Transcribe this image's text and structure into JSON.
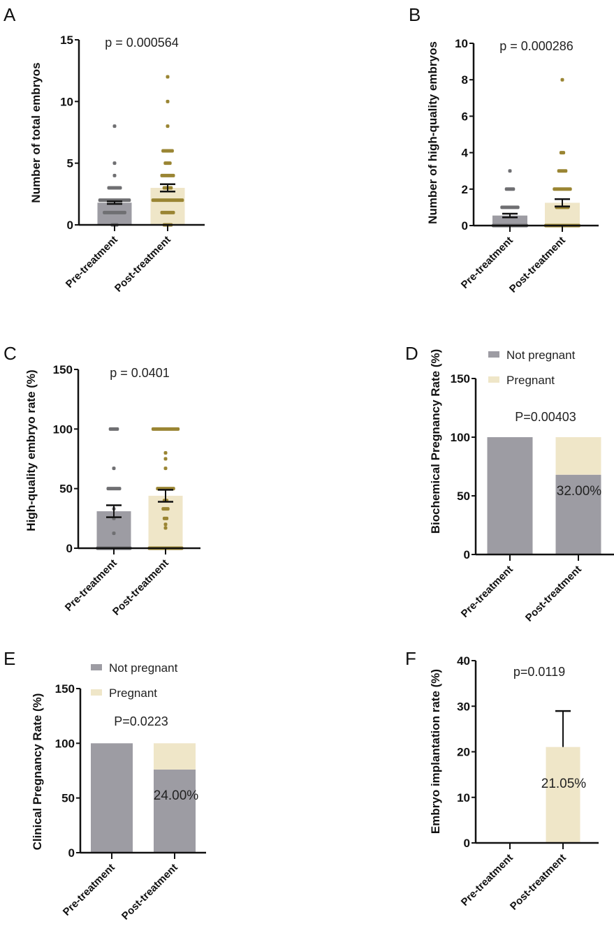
{
  "colors": {
    "pre_bar": "#9d9ca3",
    "post_bar": "#efe6c8",
    "pre_dots": "#6f6f72",
    "post_dots": "#9a8533",
    "not_pregnant": "#9d9ca3",
    "pregnant": "#efe6c8",
    "axis": "#111111"
  },
  "chart_data": [
    {
      "panel": "A",
      "type": "bar",
      "ylabel": "Number of total embryos",
      "ylim": [
        0,
        15
      ],
      "yticks": [
        0,
        5,
        10,
        15
      ],
      "p_text": "p = 0.000564",
      "categories": [
        "Pre-treatment",
        "Post-treatment"
      ],
      "series": [
        {
          "name": "Pre-treatment",
          "mean": 1.8,
          "sem": 0.1,
          "points": [
            {
              "v": 0,
              "n": 3
            },
            {
              "v": 1,
              "n": 10
            },
            {
              "v": 2,
              "n": 14
            },
            {
              "v": 3,
              "n": 6
            },
            {
              "v": 4,
              "n": 1
            },
            {
              "v": 5,
              "n": 1
            },
            {
              "v": 8,
              "n": 1
            }
          ]
        },
        {
          "name": "Post-treatment",
          "mean": 3.0,
          "sem": 0.3,
          "points": [
            {
              "v": 0,
              "n": 4
            },
            {
              "v": 1,
              "n": 6
            },
            {
              "v": 2,
              "n": 14
            },
            {
              "v": 3,
              "n": 4
            },
            {
              "v": 4,
              "n": 6
            },
            {
              "v": 5,
              "n": 3
            },
            {
              "v": 6,
              "n": 5
            },
            {
              "v": 8,
              "n": 1
            },
            {
              "v": 10,
              "n": 1
            },
            {
              "v": 12,
              "n": 1
            }
          ]
        }
      ]
    },
    {
      "panel": "B",
      "type": "bar",
      "ylabel": "Number of high-quality embryos",
      "ylim": [
        0,
        10
      ],
      "yticks": [
        0,
        2,
        4,
        6,
        8,
        10
      ],
      "p_text": "p = 0.000286",
      "categories": [
        "Pre-treatment",
        "Post-treatment"
      ],
      "series": [
        {
          "name": "Pre-treatment",
          "mean": 0.55,
          "sem": 0.1,
          "points": [
            {
              "v": 0,
              "n": 16
            },
            {
              "v": 1,
              "n": 8
            },
            {
              "v": 2,
              "n": 4
            },
            {
              "v": 3,
              "n": 1
            }
          ]
        },
        {
          "name": "Post-treatment",
          "mean": 1.25,
          "sem": 0.2,
          "points": [
            {
              "v": 0,
              "n": 16
            },
            {
              "v": 1,
              "n": 6
            },
            {
              "v": 2,
              "n": 8
            },
            {
              "v": 3,
              "n": 4
            },
            {
              "v": 4,
              "n": 2
            },
            {
              "v": 8,
              "n": 1
            }
          ]
        }
      ]
    },
    {
      "panel": "C",
      "type": "bar",
      "ylabel": "High-quality embryo rate (%)",
      "ylim": [
        0,
        150
      ],
      "yticks": [
        0,
        50,
        100,
        150
      ],
      "p_text": "p = 0.0401",
      "categories": [
        "Pre-treatment",
        "Post-treatment"
      ],
      "series": [
        {
          "name": "Pre-treatment",
          "mean": 31,
          "sem": 5,
          "points": [
            {
              "v": 0,
              "n": 16
            },
            {
              "v": 12.5,
              "n": 1
            },
            {
              "v": 25,
              "n": 1
            },
            {
              "v": 33,
              "n": 1
            },
            {
              "v": 50,
              "n": 6
            },
            {
              "v": 67,
              "n": 1
            },
            {
              "v": 100,
              "n": 4
            }
          ]
        },
        {
          "name": "Post-treatment",
          "mean": 44,
          "sem": 5,
          "points": [
            {
              "v": 0,
              "n": 16
            },
            {
              "v": 17,
              "n": 1
            },
            {
              "v": 20,
              "n": 1
            },
            {
              "v": 25,
              "n": 2
            },
            {
              "v": 33,
              "n": 3
            },
            {
              "v": 40,
              "n": 2
            },
            {
              "v": 50,
              "n": 8
            },
            {
              "v": 67,
              "n": 1
            },
            {
              "v": 75,
              "n": 1
            },
            {
              "v": 80,
              "n": 1
            },
            {
              "v": 100,
              "n": 12
            }
          ]
        }
      ]
    },
    {
      "panel": "D",
      "type": "stacked_bar",
      "ylabel": "Biochemical Pregnancy Rate (%)",
      "ylim": [
        0,
        150
      ],
      "yticks": [
        0,
        50,
        100,
        150
      ],
      "p_text": "P=0.00403",
      "categories": [
        "Pre-treatment",
        "Post-treatment"
      ],
      "legend": [
        "Not pregnant",
        "Pregnant"
      ],
      "series": [
        {
          "name": "Not pregnant",
          "values": [
            100,
            68
          ]
        },
        {
          "name": "Pregnant",
          "values": [
            0,
            32
          ]
        }
      ],
      "annotation": "32.00%"
    },
    {
      "panel": "E",
      "type": "stacked_bar",
      "ylabel": "Clinical Pregnancy Rate (%)",
      "ylim": [
        0,
        150
      ],
      "yticks": [
        0,
        50,
        100,
        150
      ],
      "p_text": "P=0.0223",
      "categories": [
        "Pre-treatment",
        "Post-treatment"
      ],
      "legend": [
        "Not pregnant",
        "Pregnant"
      ],
      "series": [
        {
          "name": "Not pregnant",
          "values": [
            100,
            76
          ]
        },
        {
          "name": "Pregnant",
          "values": [
            0,
            24
          ]
        }
      ],
      "annotation": "24.00%"
    },
    {
      "panel": "F",
      "type": "bar",
      "ylabel": "Embryo implantation rate (%)",
      "ylim": [
        0,
        40
      ],
      "yticks": [
        0,
        10,
        20,
        30,
        40
      ],
      "p_text": "p=0.0119",
      "categories": [
        "Pre-treatment",
        "Post-treatment"
      ],
      "series": [
        {
          "name": "Pre-treatment",
          "mean": 0,
          "sem": 0
        },
        {
          "name": "Post-treatment",
          "mean": 21.05,
          "sem": 7.9
        }
      ],
      "annotation": "21.05%"
    }
  ]
}
